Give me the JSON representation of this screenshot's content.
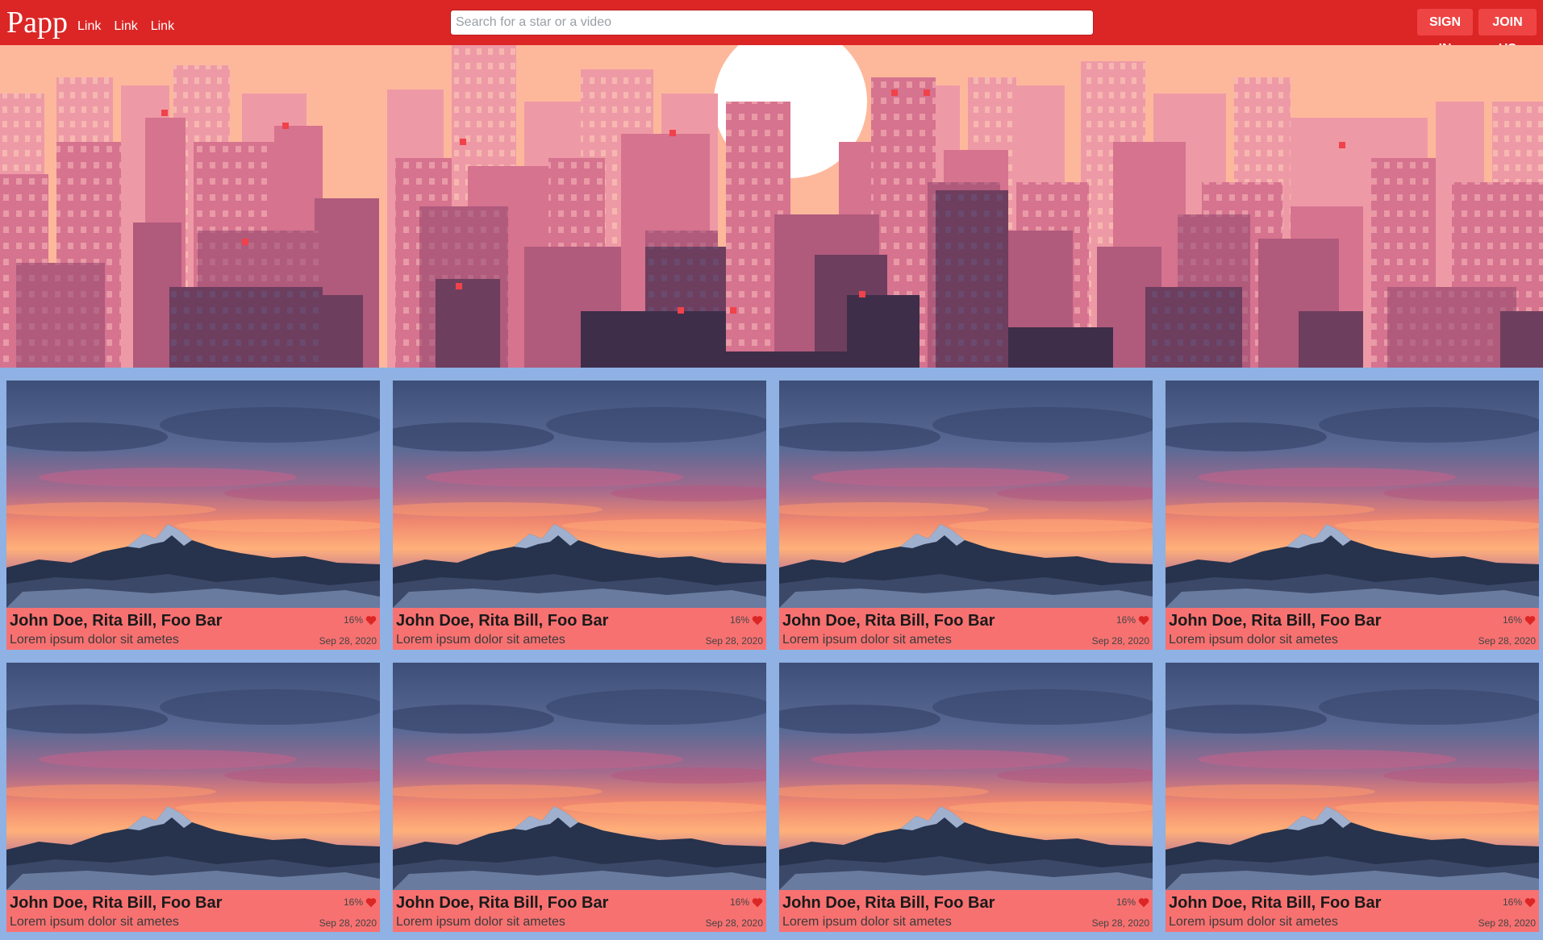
{
  "header": {
    "logo": "Papp",
    "nav_links": [
      "Link",
      "Link",
      "Link"
    ],
    "search_placeholder": "Search for a star or a video",
    "signin_label": "SIGN IN",
    "join_label": "JOIN US"
  },
  "colors": {
    "header_bg": "#dc2626",
    "page_bg": "#8fb1e3",
    "card_bg": "#f87171",
    "heart": "#dc2626"
  },
  "icons": {
    "rating": "heart-icon"
  },
  "cards": [
    {
      "names": "John Doe, Rita Bill, Foo Bar",
      "rating": "16%",
      "description": "Lorem ipsum dolor sit ametes",
      "date": "Sep 28, 2020"
    },
    {
      "names": "John Doe, Rita Bill, Foo Bar",
      "rating": "16%",
      "description": "Lorem ipsum dolor sit ametes",
      "date": "Sep 28, 2020"
    },
    {
      "names": "John Doe, Rita Bill, Foo Bar",
      "rating": "16%",
      "description": "Lorem ipsum dolor sit ametes",
      "date": "Sep 28, 2020"
    },
    {
      "names": "John Doe, Rita Bill, Foo Bar",
      "rating": "16%",
      "description": "Lorem ipsum dolor sit ametes",
      "date": "Sep 28, 2020"
    },
    {
      "names": "John Doe, Rita Bill, Foo Bar",
      "rating": "16%",
      "description": "Lorem ipsum dolor sit ametes",
      "date": "Sep 28, 2020"
    },
    {
      "names": "John Doe, Rita Bill, Foo Bar",
      "rating": "16%",
      "description": "Lorem ipsum dolor sit ametes",
      "date": "Sep 28, 2020"
    },
    {
      "names": "John Doe, Rita Bill, Foo Bar",
      "rating": "16%",
      "description": "Lorem ipsum dolor sit ametes",
      "date": "Sep 28, 2020"
    },
    {
      "names": "John Doe, Rita Bill, Foo Bar",
      "rating": "16%",
      "description": "Lorem ipsum dolor sit ametes",
      "date": "Sep 28, 2020"
    }
  ]
}
